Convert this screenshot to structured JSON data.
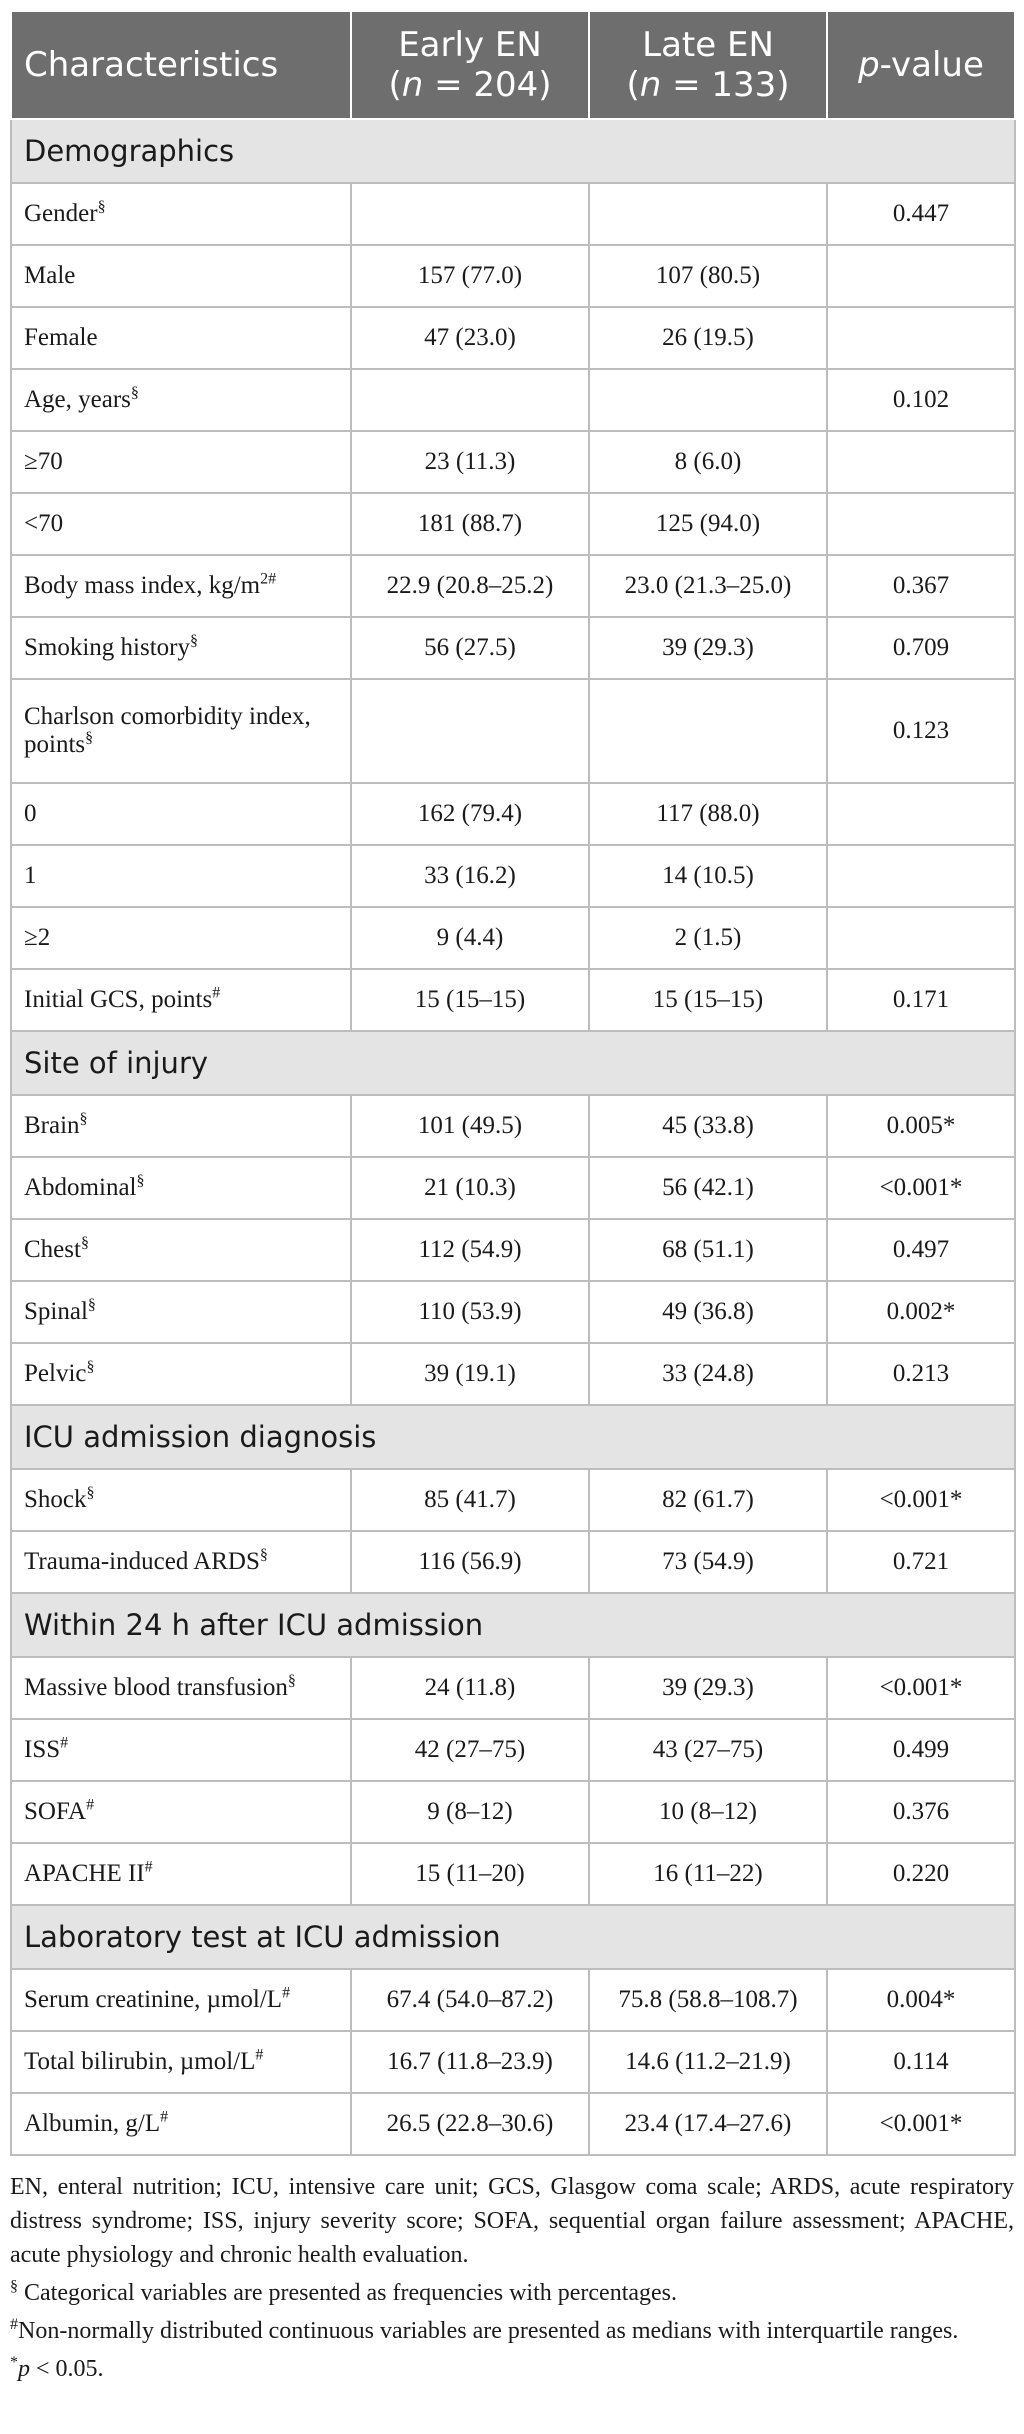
{
  "headers": {
    "characteristics": "Characteristics",
    "early_title": "Early EN",
    "early_n_prefix": "n",
    "early_n_value": " = 204)",
    "late_title": "Late EN",
    "late_n_prefix": "n",
    "late_n_value": " = 133)",
    "p_prefix": "p",
    "p_suffix": "-value"
  },
  "sections": [
    {
      "title": "Demographics",
      "rows": [
        {
          "label": "Gender",
          "mark": "§",
          "early": "",
          "late": "",
          "p": "0.447"
        },
        {
          "label": "Male",
          "mark": "",
          "early": "157 (77.0)",
          "late": "107 (80.5)",
          "p": ""
        },
        {
          "label": "Female",
          "mark": "",
          "early": "47 (23.0)",
          "late": "26 (19.5)",
          "p": ""
        },
        {
          "label": "Age, years",
          "mark": "§",
          "early": "",
          "late": "",
          "p": "0.102"
        },
        {
          "label": "≥70",
          "mark": "",
          "early": "23 (11.3)",
          "late": "8 (6.0)",
          "p": ""
        },
        {
          "label": "<70",
          "mark": "",
          "early": "181 (88.7)",
          "late": "125 (94.0)",
          "p": ""
        },
        {
          "label": "Body mass index, kg/m",
          "mark": "2#",
          "early": "22.9 (20.8–25.2)",
          "late": "23.0 (21.3–25.0)",
          "p": "0.367"
        },
        {
          "label": "Smoking history",
          "mark": "§",
          "early": "56 (27.5)",
          "late": "39 (29.3)",
          "p": "0.709"
        },
        {
          "label": "Charlson comorbidity index, points",
          "mark": "§",
          "early": "",
          "late": "",
          "p": "0.123",
          "tall": true
        },
        {
          "label": "0",
          "mark": "",
          "early": "162 (79.4)",
          "late": "117 (88.0)",
          "p": ""
        },
        {
          "label": "1",
          "mark": "",
          "early": "33 (16.2)",
          "late": "14 (10.5)",
          "p": ""
        },
        {
          "label": "≥2",
          "mark": "",
          "early": "9 (4.4)",
          "late": "2 (1.5)",
          "p": ""
        },
        {
          "label": "Initial GCS, points",
          "mark": "#",
          "early": "15 (15–15)",
          "late": "15 (15–15)",
          "p": "0.171"
        }
      ]
    },
    {
      "title": "Site of injury",
      "rows": [
        {
          "label": "Brain",
          "mark": "§",
          "early": "101 (49.5)",
          "late": "45 (33.8)",
          "p": "0.005*"
        },
        {
          "label": "Abdominal",
          "mark": "§",
          "early": "21 (10.3)",
          "late": "56 (42.1)",
          "p": "<0.001*"
        },
        {
          "label": "Chest",
          "mark": "§",
          "early": "112 (54.9)",
          "late": "68 (51.1)",
          "p": "0.497"
        },
        {
          "label": "Spinal",
          "mark": "§",
          "early": "110 (53.9)",
          "late": "49 (36.8)",
          "p": "0.002*"
        },
        {
          "label": "Pelvic",
          "mark": "§",
          "early": "39 (19.1)",
          "late": "33 (24.8)",
          "p": "0.213"
        }
      ]
    },
    {
      "title": "ICU admission diagnosis",
      "rows": [
        {
          "label": "Shock",
          "mark": "§",
          "early": "85 (41.7)",
          "late": "82 (61.7)",
          "p": "<0.001*"
        },
        {
          "label": "Trauma-induced ARDS",
          "mark": "§",
          "early": "116 (56.9)",
          "late": "73 (54.9)",
          "p": "0.721"
        }
      ]
    },
    {
      "title": "Within 24 h after ICU admission",
      "rows": [
        {
          "label": "Massive blood transfusion",
          "mark": "§",
          "early": "24 (11.8)",
          "late": "39 (29.3)",
          "p": "<0.001*"
        },
        {
          "label": "ISS",
          "mark": "#",
          "early": "42 (27–75)",
          "late": "43 (27–75)",
          "p": "0.499"
        },
        {
          "label": "SOFA",
          "mark": "#",
          "early": "9 (8–12)",
          "late": "10 (8–12)",
          "p": "0.376"
        },
        {
          "label": "APACHE II",
          "mark": "#",
          "early": "15 (11–20)",
          "late": "16 (11–22)",
          "p": "0.220"
        }
      ]
    },
    {
      "title": "Laboratory test at ICU admission",
      "rows": [
        {
          "label": "Serum creatinine, µmol/L",
          "mark": "#",
          "early": "67.4 (54.0–87.2)",
          "late": "75.8 (58.8–108.7)",
          "p": "0.004*"
        },
        {
          "label": "Total bilirubin, µmol/L",
          "mark": "#",
          "early": "16.7 (11.8–23.9)",
          "late": "14.6 (11.2–21.9)",
          "p": "0.114"
        },
        {
          "label": "Albumin, g/L",
          "mark": "#",
          "early": "26.5 (22.8–30.6)",
          "late": "23.4 (17.4–27.6)",
          "p": "<0.001*"
        }
      ]
    }
  ],
  "footnotes": {
    "abbrev": "EN, enteral nutrition; ICU, intensive care unit; GCS, Glasgow coma scale; ARDS, acute respiratory distress syndrome; ISS, injury severity score; SOFA, sequential organ failure assessment; APACHE, acute physiology and chronic health evaluation.",
    "section_mark": "§",
    "section_text": " Categorical variables are presented as frequencies with percentages.",
    "hash_mark": "#",
    "hash_text": "Non-normally distributed continuous variables are presented as medians with interquartile ranges.",
    "star_mark": "*",
    "star_p": "p",
    "star_text": " < 0.05."
  }
}
